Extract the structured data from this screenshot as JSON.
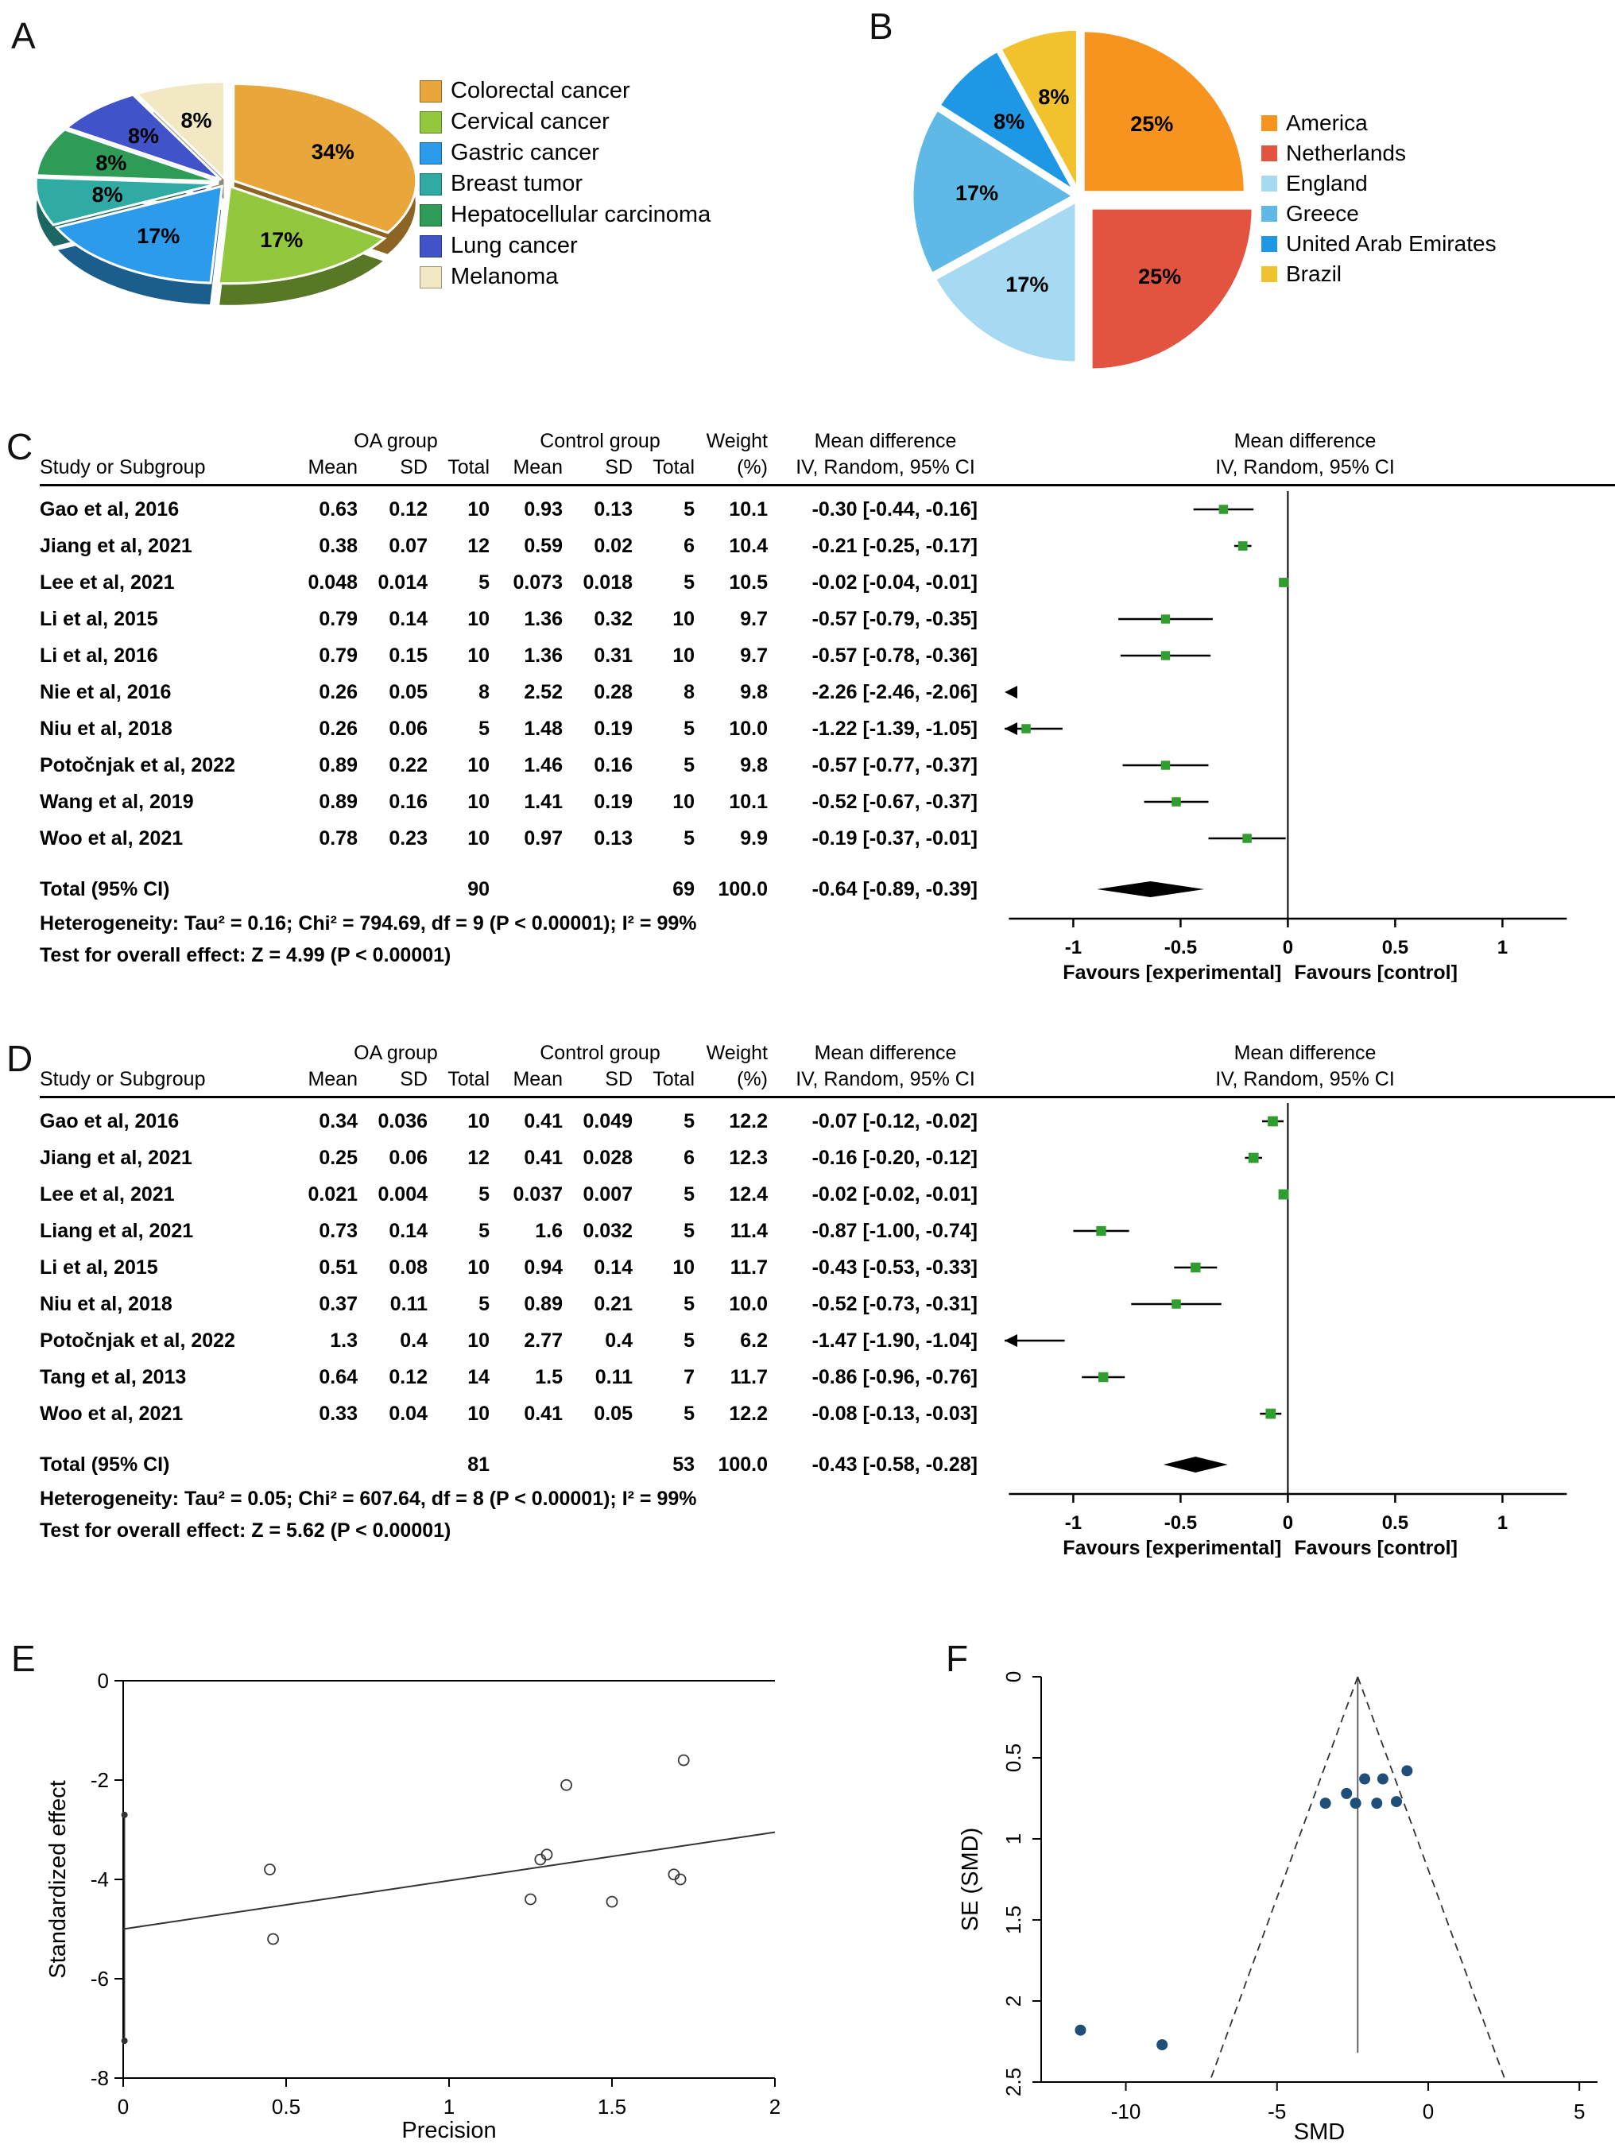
{
  "chart_data": [
    {
      "panel": "A",
      "key": "a",
      "type": "pie",
      "style": "3d-exploded",
      "labels": [
        "Colorectal cancer",
        "Cervical cancer",
        "Gastric cancer",
        "Breast tumor",
        "Hepatocellular carcinoma",
        "Lung cancer",
        "Melanoma"
      ],
      "values": [
        34,
        17,
        17,
        8,
        8,
        8,
        8
      ],
      "slice_labels": [
        "34%",
        "17%",
        "17%",
        "8%",
        "8%",
        "8%",
        "8%"
      ],
      "colors": [
        "#E9A63A",
        "#93C83E",
        "#2D9BEB",
        "#30ABA3",
        "#2E9B57",
        "#4053C8",
        "#F2E8C4"
      ],
      "cx": 265,
      "cy": 160,
      "rx": 230,
      "ry": 122,
      "depth": 28,
      "explode": [
        10,
        10,
        10,
        10,
        10,
        10,
        10
      ],
      "label_r": 0.62,
      "stroke_width": 3,
      "legend_position": "right"
    },
    {
      "panel": "B",
      "key": "b",
      "type": "pie",
      "style": "flat-exploded",
      "labels": [
        "America",
        "Netherlands",
        "England",
        "Greece",
        "United Arab Emirates",
        "Brazil"
      ],
      "values": [
        25,
        25,
        17,
        17,
        8,
        8
      ],
      "slice_labels": [
        "25%",
        "25%",
        "17%",
        "17%",
        "8%",
        "8%"
      ],
      "colors": [
        "#F79420",
        "#E2543F",
        "#A6D9F2",
        "#5FB9E6",
        "#1E97E4",
        "#F2C12E"
      ],
      "cx": 225,
      "cy": 235,
      "rx": 205,
      "ry": 205,
      "depth": 0,
      "explode": [
        6,
        20,
        6,
        6,
        6,
        6
      ],
      "label_r": 0.6,
      "stroke_width": 5,
      "legend_position": "right"
    },
    {
      "panel": "C",
      "key": "c",
      "type": "forest",
      "header": {
        "group1": "OA group",
        "group2": "Control group",
        "weight": "Weight",
        "md": "Mean difference",
        "study": "Study or Subgroup",
        "mean": "Mean",
        "sd": "SD",
        "total": "Total",
        "pct": "(%)",
        "ci": "IV, Random, 95% CI"
      },
      "studies": [
        {
          "name": "Gao et al, 2016",
          "m1": "0.63",
          "sd1": "0.12",
          "n1": "10",
          "m2": "0.93",
          "sd2": "0.13",
          "n2": "5",
          "w": "10.1",
          "ci": "-0.30 [-0.44, -0.16]",
          "est": -0.3,
          "lo": -0.44,
          "hi": -0.16
        },
        {
          "name": "Jiang et al, 2021",
          "m1": "0.38",
          "sd1": "0.07",
          "n1": "12",
          "m2": "0.59",
          "sd2": "0.02",
          "n2": "6",
          "w": "10.4",
          "ci": "-0.21 [-0.25, -0.17]",
          "est": -0.21,
          "lo": -0.25,
          "hi": -0.17
        },
        {
          "name": "Lee et al, 2021",
          "m1": "0.048",
          "sd1": "0.014",
          "n1": "5",
          "m2": "0.073",
          "sd2": "0.018",
          "n2": "5",
          "w": "10.5",
          "ci": "-0.02 [-0.04, -0.01]",
          "est": -0.02,
          "lo": -0.04,
          "hi": -0.01
        },
        {
          "name": "Li et al, 2015",
          "m1": "0.79",
          "sd1": "0.14",
          "n1": "10",
          "m2": "1.36",
          "sd2": "0.32",
          "n2": "10",
          "w": "9.7",
          "ci": "-0.57 [-0.79, -0.35]",
          "est": -0.57,
          "lo": -0.79,
          "hi": -0.35
        },
        {
          "name": "Li et al, 2016",
          "m1": "0.79",
          "sd1": "0.15",
          "n1": "10",
          "m2": "1.36",
          "sd2": "0.31",
          "n2": "10",
          "w": "9.7",
          "ci": "-0.57 [-0.78, -0.36]",
          "est": -0.57,
          "lo": -0.78,
          "hi": -0.36
        },
        {
          "name": "Nie et al, 2016",
          "m1": "0.26",
          "sd1": "0.05",
          "n1": "8",
          "m2": "2.52",
          "sd2": "0.28",
          "n2": "8",
          "w": "9.8",
          "ci": "-2.26 [-2.46, -2.06]",
          "est": -2.26,
          "lo": -2.46,
          "hi": -2.06
        },
        {
          "name": "Niu et al, 2018",
          "m1": "0.26",
          "sd1": "0.06",
          "n1": "5",
          "m2": "1.48",
          "sd2": "0.19",
          "n2": "5",
          "w": "10.0",
          "ci": "-1.22 [-1.39, -1.05]",
          "est": -1.22,
          "lo": -1.39,
          "hi": -1.05
        },
        {
          "name": "Potočnjak et al, 2022",
          "m1": "0.89",
          "sd1": "0.22",
          "n1": "10",
          "m2": "1.46",
          "sd2": "0.16",
          "n2": "5",
          "w": "9.8",
          "ci": "-0.57 [-0.77, -0.37]",
          "est": -0.57,
          "lo": -0.77,
          "hi": -0.37
        },
        {
          "name": "Wang et al, 2019",
          "m1": "0.89",
          "sd1": "0.16",
          "n1": "10",
          "m2": "1.41",
          "sd2": "0.19",
          "n2": "10",
          "w": "10.1",
          "ci": "-0.52 [-0.67, -0.37]",
          "est": -0.52,
          "lo": -0.67,
          "hi": -0.37
        },
        {
          "name": "Woo et al, 2021",
          "m1": "0.78",
          "sd1": "0.23",
          "n1": "10",
          "m2": "0.97",
          "sd2": "0.13",
          "n2": "5",
          "w": "9.9",
          "ci": "-0.19 [-0.37, -0.01]",
          "est": -0.19,
          "lo": -0.37,
          "hi": -0.01
        }
      ],
      "total": {
        "label": "Total (95% CI)",
        "n1": "90",
        "n2": "69",
        "w": "100.0",
        "ci": "-0.64 [-0.89, -0.39]",
        "est": -0.64,
        "lo": -0.89,
        "hi": -0.39
      },
      "heterogeneity": "Heterogeneity: Tau² = 0.16; Chi² = 794.69, df = 9 (P < 0.00001); I² = 99%",
      "overall_test": "Test for overall effect: Z = 4.99 (P < 0.00001)",
      "ticks": [
        -1,
        -0.5,
        0,
        0.5,
        1
      ],
      "tick_labels": [
        "-1",
        "-0.5",
        "0",
        "0.5",
        "1"
      ],
      "xlim": [
        -1.32,
        1.48
      ],
      "axis_span": [
        -1.3,
        1.3
      ],
      "favours_left": "Favours [experimental]",
      "favours_right": "Favours [control]",
      "marker_color": "#2F9E2F"
    },
    {
      "panel": "D",
      "key": "d",
      "type": "forest",
      "header": {
        "group1": "OA group",
        "group2": "Control group",
        "weight": "Weight",
        "md": "Mean difference",
        "study": "Study or Subgroup",
        "mean": "Mean",
        "sd": "SD",
        "total": "Total",
        "pct": "(%)",
        "ci": "IV, Random, 95% CI"
      },
      "studies": [
        {
          "name": "Gao et al, 2016",
          "m1": "0.34",
          "sd1": "0.036",
          "n1": "10",
          "m2": "0.41",
          "sd2": "0.049",
          "n2": "5",
          "w": "12.2",
          "ci": "-0.07 [-0.12, -0.02]",
          "est": -0.07,
          "lo": -0.12,
          "hi": -0.02
        },
        {
          "name": "Jiang et al, 2021",
          "m1": "0.25",
          "sd1": "0.06",
          "n1": "12",
          "m2": "0.41",
          "sd2": "0.028",
          "n2": "6",
          "w": "12.3",
          "ci": "-0.16 [-0.20, -0.12]",
          "est": -0.16,
          "lo": -0.2,
          "hi": -0.12
        },
        {
          "name": "Lee et al, 2021",
          "m1": "0.021",
          "sd1": "0.004",
          "n1": "5",
          "m2": "0.037",
          "sd2": "0.007",
          "n2": "5",
          "w": "12.4",
          "ci": "-0.02 [-0.02, -0.01]",
          "est": -0.02,
          "lo": -0.02,
          "hi": -0.01
        },
        {
          "name": "Liang et al, 2021",
          "m1": "0.73",
          "sd1": "0.14",
          "n1": "5",
          "m2": "1.6",
          "sd2": "0.032",
          "n2": "5",
          "w": "11.4",
          "ci": "-0.87 [-1.00, -0.74]",
          "est": -0.87,
          "lo": -1.0,
          "hi": -0.74
        },
        {
          "name": "Li et al, 2015",
          "m1": "0.51",
          "sd1": "0.08",
          "n1": "10",
          "m2": "0.94",
          "sd2": "0.14",
          "n2": "10",
          "w": "11.7",
          "ci": "-0.43 [-0.53, -0.33]",
          "est": -0.43,
          "lo": -0.53,
          "hi": -0.33
        },
        {
          "name": "Niu et al, 2018",
          "m1": "0.37",
          "sd1": "0.11",
          "n1": "5",
          "m2": "0.89",
          "sd2": "0.21",
          "n2": "5",
          "w": "10.0",
          "ci": "-0.52 [-0.73, -0.31]",
          "est": -0.52,
          "lo": -0.73,
          "hi": -0.31
        },
        {
          "name": "Potočnjak et al, 2022",
          "m1": "1.3",
          "sd1": "0.4",
          "n1": "10",
          "m2": "2.77",
          "sd2": "0.4",
          "n2": "5",
          "w": "6.2",
          "ci": "-1.47 [-1.90, -1.04]",
          "est": -1.47,
          "lo": -1.9,
          "hi": -1.04
        },
        {
          "name": "Tang et al, 2013",
          "m1": "0.64",
          "sd1": "0.12",
          "n1": "14",
          "m2": "1.5",
          "sd2": "0.11",
          "n2": "7",
          "w": "11.7",
          "ci": "-0.86 [-0.96, -0.76]",
          "est": -0.86,
          "lo": -0.96,
          "hi": -0.76
        },
        {
          "name": "Woo et al, 2021",
          "m1": "0.33",
          "sd1": "0.04",
          "n1": "10",
          "m2": "0.41",
          "sd2": "0.05",
          "n2": "5",
          "w": "12.2",
          "ci": "-0.08 [-0.13, -0.03]",
          "est": -0.08,
          "lo": -0.13,
          "hi": -0.03
        }
      ],
      "total": {
        "label": "Total (95% CI)",
        "n1": "81",
        "n2": "53",
        "w": "100.0",
        "ci": "-0.43 [-0.58, -0.28]",
        "est": -0.43,
        "lo": -0.58,
        "hi": -0.28
      },
      "heterogeneity": "Heterogeneity: Tau² = 0.05; Chi² = 607.64, df = 8 (P < 0.00001); I² = 99%",
      "overall_test": "Test for overall effect: Z = 5.62 (P < 0.00001)",
      "ticks": [
        -1,
        -0.5,
        0,
        0.5,
        1
      ],
      "tick_labels": [
        "-1",
        "-0.5",
        "0",
        "0.5",
        "1"
      ],
      "xlim": [
        -1.32,
        1.48
      ],
      "axis_span": [
        -1.3,
        1.3
      ],
      "favours_left": "Favours [experimental]",
      "favours_right": "Favours [control]",
      "marker_color": "#2F9E2F"
    },
    {
      "panel": "E",
      "key": "e",
      "type": "scatter",
      "xlabel": "Precision",
      "ylabel": "Standardized effect",
      "xlim": [
        0,
        2
      ],
      "ylim": [
        -8,
        0
      ],
      "xticks": [
        0,
        0.5,
        1,
        1.5,
        2
      ],
      "xtick_labels": [
        "0",
        "0.5",
        "1",
        "1.5",
        "2"
      ],
      "yticks": [
        0,
        -2,
        -4,
        -6,
        -8
      ],
      "ytick_labels": [
        "0",
        "-2",
        "-4",
        "-6",
        "-8"
      ],
      "points": [
        [
          0.45,
          -3.8
        ],
        [
          0.46,
          -5.2
        ],
        [
          1.25,
          -4.4
        ],
        [
          1.28,
          -3.6
        ],
        [
          1.3,
          -3.5
        ],
        [
          1.36,
          -2.1
        ],
        [
          1.5,
          -4.45
        ],
        [
          1.69,
          -3.9
        ],
        [
          1.71,
          -4.0
        ],
        [
          1.72,
          -1.6
        ]
      ],
      "ci_bar": {
        "x": 0.004,
        "y1": -2.7,
        "y2": -7.25
      },
      "fit_line": {
        "x1": 0,
        "y1": -5.0,
        "x2": 2,
        "y2": -3.05
      }
    },
    {
      "panel": "F",
      "key": "f",
      "type": "funnel",
      "xlabel": "SMD",
      "ylabel": "SE (SMD)",
      "xlim": [
        -12.8,
        5.6
      ],
      "ylim": [
        0,
        2.5
      ],
      "xticks": [
        -10,
        -5,
        0,
        5
      ],
      "xtick_labels": [
        "-10",
        "-5",
        "0",
        "5"
      ],
      "yticks": [
        0,
        0.5,
        1,
        1.5,
        2,
        2.5
      ],
      "ytick_labels": [
        "0",
        "0.5",
        "1",
        "1.5",
        "2",
        "2.5"
      ],
      "center": -2.33,
      "z": 1.96,
      "points": [
        [
          -11.5,
          2.18
        ],
        [
          -8.8,
          2.27
        ],
        [
          -3.4,
          0.78
        ],
        [
          -2.7,
          0.72
        ],
        [
          -2.4,
          0.78
        ],
        [
          -2.1,
          0.63
        ],
        [
          -1.7,
          0.78
        ],
        [
          -1.5,
          0.63
        ],
        [
          -1.05,
          0.77
        ],
        [
          -0.7,
          0.58
        ]
      ],
      "point_color": "#1F4E79"
    }
  ]
}
